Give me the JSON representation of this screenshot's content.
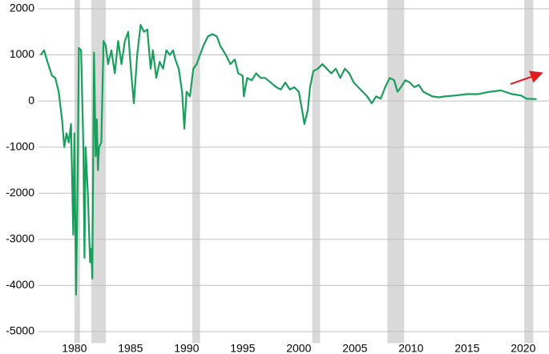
{
  "chart_data": {
    "type": "line",
    "x": [
      1977.0,
      1977.3,
      1977.6,
      1978.0,
      1978.3,
      1978.6,
      1978.9,
      1979.1,
      1979.3,
      1979.5,
      1979.7,
      1979.9,
      1980.0,
      1980.15,
      1980.3,
      1980.4,
      1980.6,
      1980.8,
      1980.9,
      1981.0,
      1981.2,
      1981.4,
      1981.5,
      1981.6,
      1981.75,
      1981.9,
      1982.0,
      1982.1,
      1982.2,
      1982.4,
      1982.6,
      1982.8,
      1983.0,
      1983.3,
      1983.6,
      1983.9,
      1984.2,
      1984.5,
      1984.8,
      1985.0,
      1985.3,
      1985.6,
      1985.9,
      1986.2,
      1986.5,
      1986.8,
      1987.0,
      1987.3,
      1987.6,
      1987.9,
      1988.2,
      1988.5,
      1988.8,
      1989.0,
      1989.3,
      1989.6,
      1989.8,
      1990.0,
      1990.3,
      1990.6,
      1990.9,
      1991.2,
      1991.5,
      1991.9,
      1992.3,
      1992.7,
      1993.0,
      1993.5,
      1993.9,
      1994.3,
      1994.6,
      1995.0,
      1995.1,
      1995.4,
      1995.8,
      1996.2,
      1996.6,
      1997.0,
      1997.5,
      1998.0,
      1998.4,
      1998.8,
      1999.2,
      1999.6,
      2000.0,
      2000.3,
      2000.5,
      2000.8,
      2001.0,
      2001.3,
      2001.7,
      2002.1,
      2002.5,
      2002.9,
      2003.3,
      2003.7,
      2004.1,
      2004.5,
      2004.9,
      2005.3,
      2005.7,
      2006.1,
      2006.5,
      2006.9,
      2007.3,
      2007.7,
      2008.1,
      2008.5,
      2008.8,
      2009.1,
      2009.5,
      2009.9,
      2010.3,
      2010.7,
      2011.1,
      2011.5,
      2011.9,
      2012.5,
      2013.0,
      2014.0,
      2015.0,
      2016.0,
      2017.0,
      2018.0,
      2019.0,
      2019.8,
      2020.3,
      2021.2
    ],
    "values": [
      1000,
      1100,
      850,
      550,
      500,
      200,
      -400,
      -1000,
      -700,
      -900,
      -500,
      -2900,
      -700,
      -4200,
      -1500,
      1150,
      1100,
      -1000,
      -3400,
      -1000,
      -2000,
      -3500,
      -3200,
      -3850,
      1050,
      -1200,
      -400,
      -1500,
      -1000,
      -900,
      1300,
      1200,
      800,
      1100,
      600,
      1300,
      800,
      1300,
      1500,
      800,
      -50,
      1000,
      1650,
      1500,
      1550,
      700,
      1100,
      500,
      850,
      700,
      1100,
      1000,
      1100,
      900,
      700,
      200,
      -600,
      200,
      100,
      700,
      800,
      1000,
      1200,
      1400,
      1450,
      1400,
      1200,
      1000,
      800,
      900,
      600,
      550,
      100,
      500,
      450,
      600,
      500,
      500,
      400,
      300,
      250,
      400,
      250,
      300,
      200,
      -200,
      -500,
      -200,
      300,
      650,
      700,
      800,
      700,
      600,
      700,
      500,
      700,
      600,
      400,
      300,
      200,
      100,
      -50,
      100,
      50,
      300,
      500,
      450,
      200,
      300,
      450,
      400,
      300,
      350,
      200,
      150,
      100,
      80,
      100,
      120,
      150,
      150,
      200,
      230,
      150,
      120,
      50,
      40
    ],
    "color": "#1a9e5c",
    "shading": [
      [
        1980.0,
        1980.5
      ],
      [
        1981.5,
        1982.8
      ],
      [
        1990.5,
        1991.2
      ],
      [
        2001.2,
        2001.9
      ],
      [
        2007.9,
        2009.4
      ],
      [
        2020.1,
        2020.9
      ]
    ],
    "shade_color": "#d9d9d9",
    "xlim": [
      1976.8,
      2022.3
    ],
    "xticks": [
      1980,
      1985,
      1990,
      1995,
      2000,
      2005,
      2010,
      2015,
      2020
    ],
    "ylim": [
      -5250,
      2100
    ],
    "yticks": [
      2000,
      1000,
      0,
      -1000,
      -2000,
      -3000,
      -4000,
      -5000
    ],
    "grid": true
  }
}
